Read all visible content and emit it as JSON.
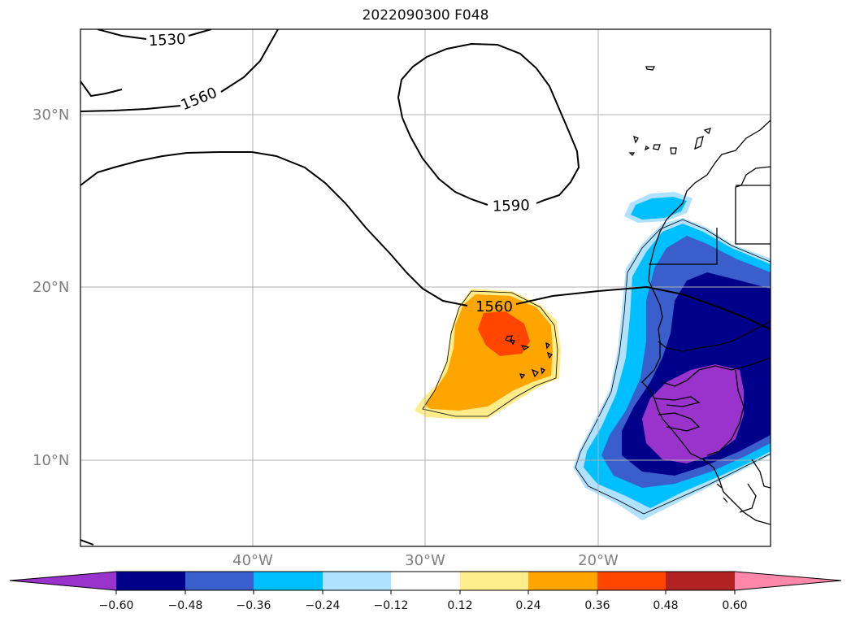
{
  "title": "2022090300 F048",
  "map": {
    "lat_ticks": [
      "30°N",
      "20°N",
      "10°N"
    ],
    "lon_ticks": [
      "40°W",
      "30°W",
      "20°W"
    ],
    "extent": {
      "lon_min": -50,
      "lon_max": -10,
      "lat_min": 5,
      "lat_max": 35
    },
    "gridlines": true,
    "contour_labels": [
      "1530",
      "1560",
      "1590",
      "1560"
    ]
  },
  "colorbar": {
    "tick_labels": [
      "−0.60",
      "−0.48",
      "−0.36",
      "−0.24",
      "−0.12",
      "0.12",
      "0.24",
      "0.36",
      "0.48",
      "0.60"
    ],
    "colors": [
      "#9933cc",
      "#00008b",
      "#3a5fcd",
      "#00bfff",
      "#b0e2ff",
      "#ffffff",
      "#ffec8b",
      "#ffa500",
      "#ff4500",
      "#b22222",
      "#ff88aa"
    ],
    "extend": "both"
  }
}
